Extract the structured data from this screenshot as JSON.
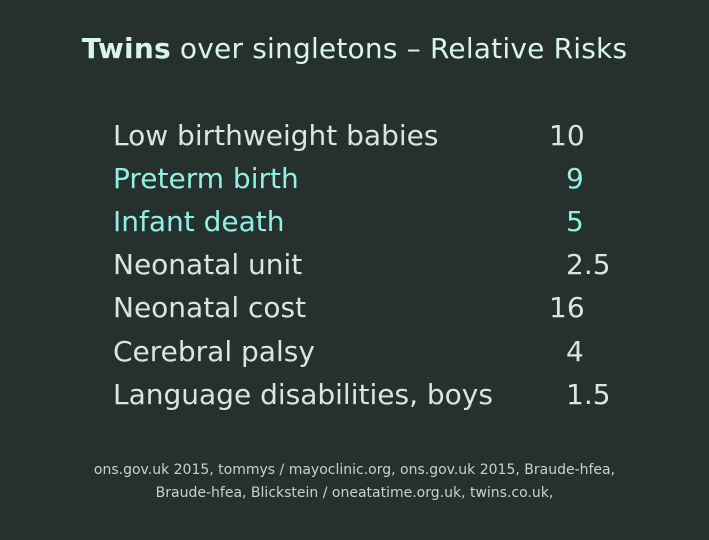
{
  "title": {
    "strong": "Twins",
    "rest": " over singletons  –  Relative Risks"
  },
  "colors": {
    "background": "#26302c",
    "text_default": "#dde3e0",
    "text_highlight": "#8ff0e3",
    "title": "#d8f4ef",
    "footer": "#c8d2cd"
  },
  "rows": [
    {
      "label": "Low birthweight babies",
      "value": "10",
      "highlight": false
    },
    {
      "label": "Preterm birth",
      "value": "9",
      "highlight": true
    },
    {
      "label": "Infant death",
      "value": "5",
      "highlight": true
    },
    {
      "label": "Neonatal unit",
      "value": "2.5",
      "highlight": false
    },
    {
      "label": "Neonatal cost",
      "value": "16",
      "highlight": false
    },
    {
      "label": "Cerebral palsy",
      "value": "4",
      "highlight": false
    },
    {
      "label": "Language disabilities, boys",
      "value": "1.5",
      "highlight": false
    }
  ],
  "footer": {
    "line1": "ons.gov.uk 2015,  tommys / mayoclinic.org, ons.gov.uk 2015,  Braude-hfea,",
    "line2": "Braude-hfea, Blickstein / oneatatime.org.uk, twins.co.uk,"
  }
}
